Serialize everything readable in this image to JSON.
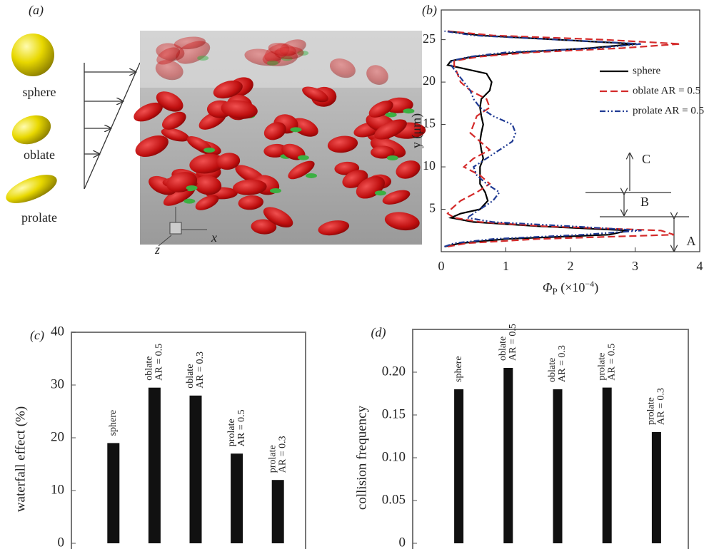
{
  "panel_a": {
    "label": "(a)",
    "shapes": [
      "sphere",
      "oblate",
      "prolate"
    ],
    "axes": [
      "z",
      "x"
    ]
  },
  "chart_data": [
    {
      "type": "line",
      "panel_label": "(b)",
      "ylabel": "y (μm)",
      "xlabel": [
        "Φ",
        "P",
        " (×10",
        "−4",
        ")"
      ],
      "y": [
        0.6,
        1.0,
        1.5,
        2.0,
        2.5,
        3.0,
        3.5,
        4.0,
        4.5,
        5,
        6,
        7,
        8,
        9,
        10,
        11,
        12,
        13,
        14,
        15,
        16,
        17,
        18,
        19,
        20,
        21,
        22,
        22.5,
        23,
        23.5,
        24,
        24.5,
        25,
        25.5,
        26
      ],
      "series": [
        {
          "name": "sphere",
          "color": "#000000",
          "dash": "solid",
          "values": [
            0.05,
            0.3,
            1.0,
            2.6,
            2.9,
            1.5,
            0.5,
            0.15,
            0.3,
            0.6,
            0.72,
            0.68,
            0.6,
            0.6,
            0.6,
            0.65,
            0.62,
            0.6,
            0.62,
            0.65,
            0.62,
            0.6,
            0.62,
            0.75,
            0.78,
            0.7,
            0.1,
            0.15,
            0.5,
            1.2,
            2.3,
            3.0,
            1.8,
            0.6,
            0.1
          ]
        },
        {
          "name": "oblate AR = 0.5",
          "color": "#d42a2a",
          "dash": "dashed",
          "values": [
            0.1,
            0.4,
            1.5,
            3.6,
            3.4,
            1.6,
            0.6,
            0.2,
            0.1,
            0.15,
            0.3,
            0.55,
            0.75,
            0.6,
            0.35,
            0.5,
            0.75,
            0.6,
            0.45,
            0.5,
            0.55,
            0.75,
            0.7,
            0.45,
            0.3,
            0.25,
            0.2,
            0.2,
            0.6,
            1.4,
            2.8,
            3.7,
            2.5,
            0.8,
            0.1
          ]
        },
        {
          "name": "prolate AR = 0.5",
          "color": "#1f3a93",
          "dash": "dashdot",
          "values": [
            0.05,
            0.2,
            0.8,
            2.2,
            3.1,
            2.0,
            0.8,
            0.4,
            0.5,
            0.6,
            0.8,
            0.9,
            0.7,
            0.55,
            0.5,
            0.7,
            0.9,
            1.1,
            1.15,
            1.1,
            0.8,
            0.6,
            0.5,
            0.45,
            0.35,
            0.25,
            0.15,
            0.15,
            0.45,
            1.0,
            2.4,
            3.1,
            1.8,
            0.5,
            0.05
          ]
        }
      ],
      "xlim": [
        0,
        4
      ],
      "xticks": [
        0,
        1,
        2,
        3,
        4
      ],
      "ylim": [
        0,
        28.5
      ],
      "yticks": [
        5,
        10,
        15,
        20,
        25
      ],
      "annotations": [
        "A",
        "B",
        "C"
      ]
    },
    {
      "type": "bar",
      "panel_label": "(c)",
      "ylabel": "waterfall effect (%)",
      "categories": [
        [
          "sphere"
        ],
        [
          "oblate",
          "AR = 0.5"
        ],
        [
          "oblate",
          "AR = 0.3"
        ],
        [
          "prolate",
          "AR = 0.5"
        ],
        [
          "prolate",
          "AR = 0.3"
        ]
      ],
      "values": [
        19,
        29.5,
        28,
        17,
        12
      ],
      "color": "#111111",
      "ylim": [
        0,
        40
      ],
      "yticks": [
        0,
        10,
        20,
        30,
        40
      ]
    },
    {
      "type": "bar",
      "panel_label": "(d)",
      "ylabel": "collision frequency",
      "categories": [
        [
          "sphere"
        ],
        [
          "oblate",
          "AR = 0.5"
        ],
        [
          "oblate",
          "AR = 0.3"
        ],
        [
          "prolate",
          "AR = 0.5"
        ],
        [
          "prolate",
          "AR = 0.3"
        ]
      ],
      "values": [
        0.18,
        0.205,
        0.18,
        0.182,
        0.13
      ],
      "color": "#111111",
      "ylim": [
        0,
        0.25
      ],
      "yticks": [
        0,
        0.05,
        {
          "value": 0.1,
          "label": "0.10"
        },
        0.15,
        {
          "value": 0.2,
          "label": "0.20"
        }
      ]
    }
  ]
}
